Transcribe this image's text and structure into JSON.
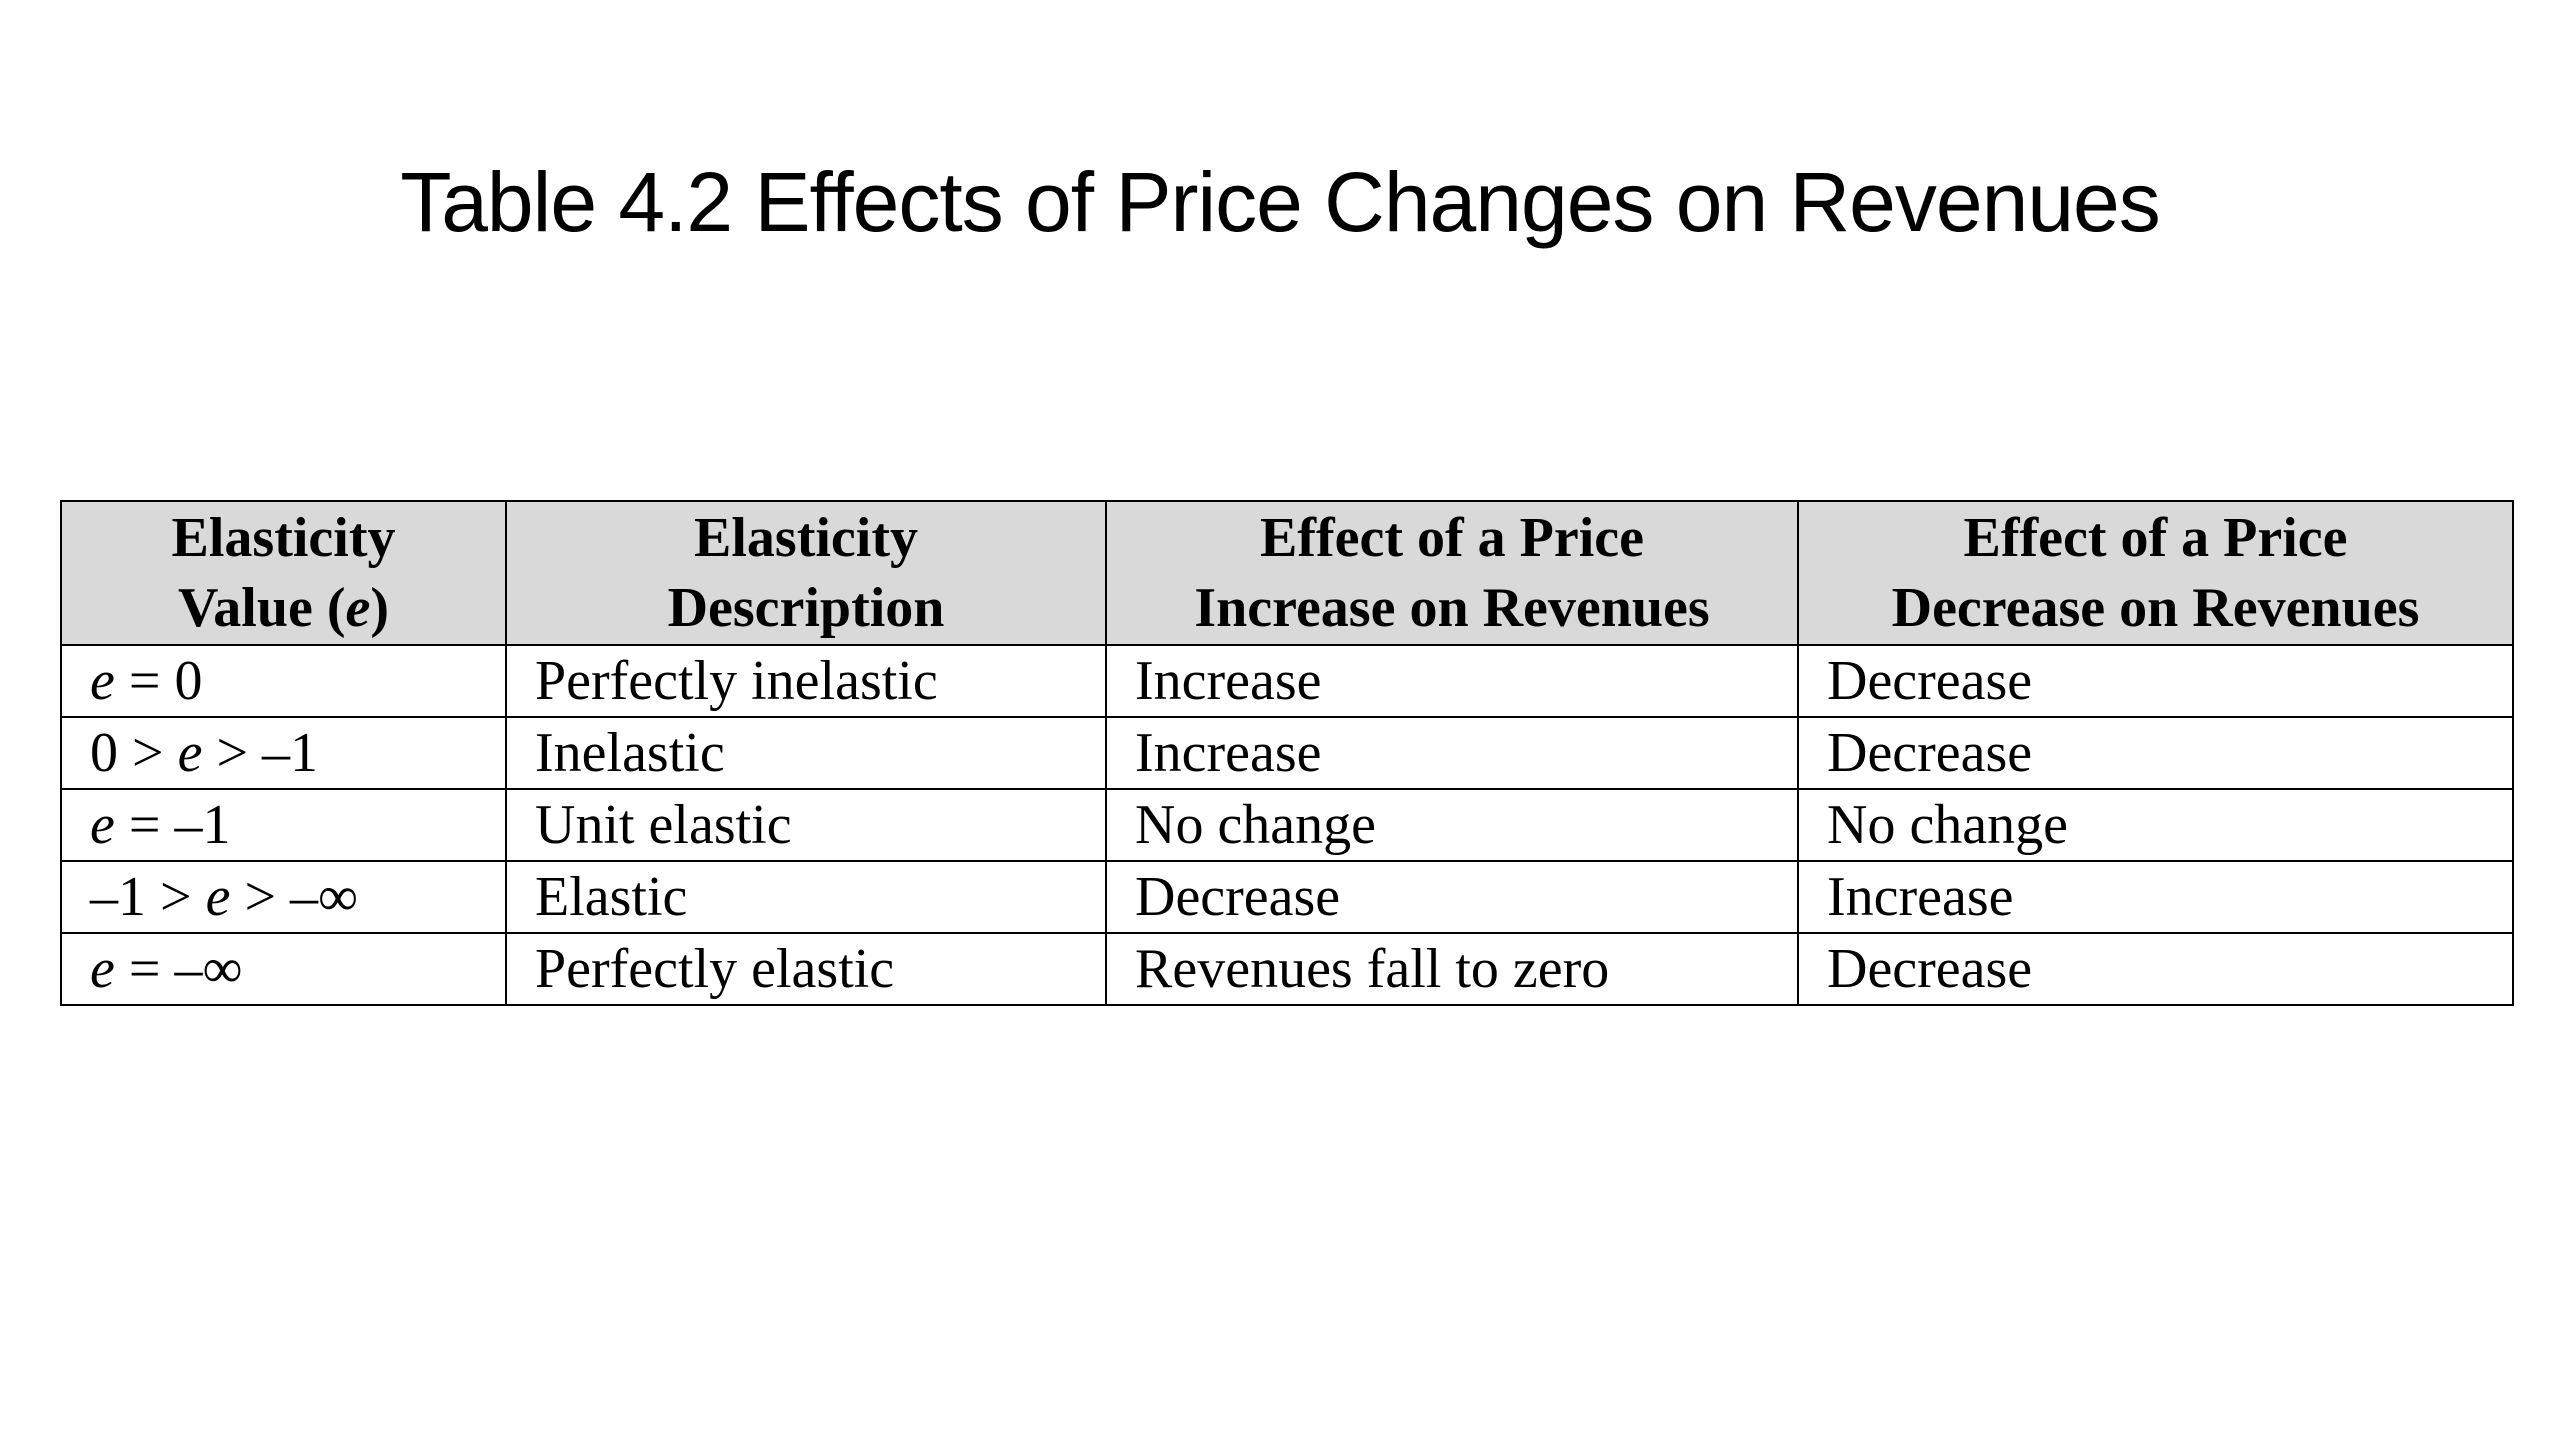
{
  "title": "Table 4.2 Effects of Price Changes on Revenues",
  "table": {
    "headers": [
      {
        "line1": "Elasticity",
        "line2_prefix": "Value (",
        "line2_var": "e",
        "line2_suffix": ")"
      },
      {
        "line1": "Elasticity",
        "line2": "Description"
      },
      {
        "line1": "Effect of a Price",
        "line2": "Increase on Revenues"
      },
      {
        "line1": "Effect of a Price",
        "line2": "Decrease on Revenues"
      }
    ],
    "rows": [
      {
        "value": "e = 0",
        "description": "Perfectly inelastic",
        "increase_effect": "Increase",
        "decrease_effect": "Decrease"
      },
      {
        "value": "0 > e > –1",
        "description": "Inelastic",
        "increase_effect": "Increase",
        "decrease_effect": "Decrease"
      },
      {
        "value": "e = –1",
        "description": "Unit elastic",
        "increase_effect": "No change",
        "decrease_effect": "No change"
      },
      {
        "value": "–1 > e > –∞",
        "description": "Elastic",
        "increase_effect": "Decrease",
        "decrease_effect": "Increase"
      },
      {
        "value": "e = –∞",
        "description": "Perfectly elastic",
        "increase_effect": "Revenues fall to zero",
        "decrease_effect": "Decrease"
      }
    ]
  }
}
